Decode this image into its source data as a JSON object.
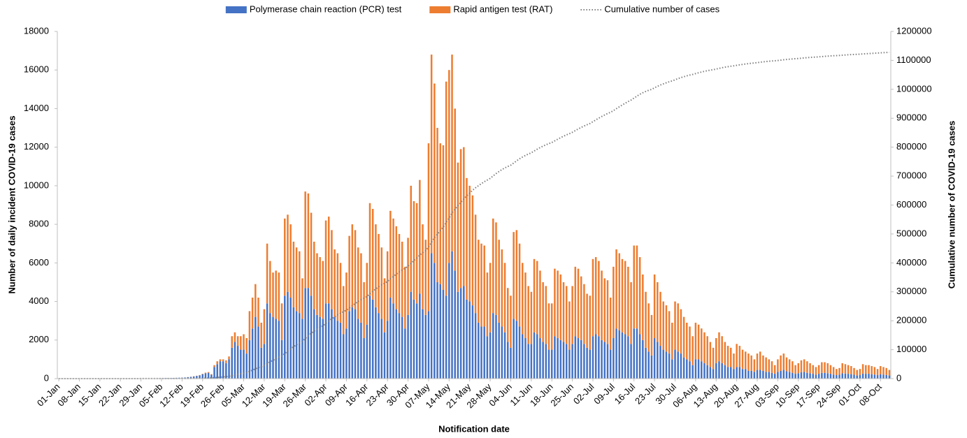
{
  "chart_data": {
    "type": "bar",
    "stacked": true,
    "legend": "top",
    "x_label": "Notification date",
    "y_label": "Number of daily incident COVID-19 cases",
    "y2_label": "Cumulative number of COVID-19 cases",
    "ylim": [
      0,
      18000
    ],
    "yticks": [
      0,
      2000,
      4000,
      6000,
      8000,
      10000,
      12000,
      14000,
      16000,
      18000
    ],
    "y2lim": [
      0,
      1200000
    ],
    "y2ticks": [
      0,
      100000,
      200000,
      300000,
      400000,
      500000,
      600000,
      700000,
      800000,
      900000,
      1000000,
      1100000,
      1200000
    ],
    "categories": [
      "01-Jan",
      null,
      null,
      null,
      null,
      null,
      null,
      "08-Jan",
      null,
      null,
      null,
      null,
      null,
      null,
      "15-Jan",
      null,
      null,
      null,
      null,
      null,
      null,
      "22-Jan",
      null,
      null,
      null,
      null,
      null,
      null,
      "29-Jan",
      null,
      null,
      null,
      null,
      null,
      null,
      "05-Feb",
      null,
      null,
      null,
      null,
      null,
      null,
      "12-Feb",
      null,
      null,
      null,
      null,
      null,
      null,
      "19-Feb",
      null,
      null,
      null,
      null,
      null,
      null,
      "26-Feb",
      null,
      null,
      null,
      null,
      null,
      null,
      "05-Mar",
      null,
      null,
      null,
      null,
      null,
      null,
      "12-Mar",
      null,
      null,
      null,
      null,
      null,
      null,
      "19-Mar",
      null,
      null,
      null,
      null,
      null,
      null,
      "26-Mar",
      null,
      null,
      null,
      null,
      null,
      null,
      "02-Apr",
      null,
      null,
      null,
      null,
      null,
      null,
      "09-Apr",
      null,
      null,
      null,
      null,
      null,
      null,
      "16-Apr",
      null,
      null,
      null,
      null,
      null,
      null,
      "23-Apr",
      null,
      null,
      null,
      null,
      null,
      null,
      "30-Apr",
      null,
      null,
      null,
      null,
      null,
      null,
      "07-May",
      null,
      null,
      null,
      null,
      null,
      null,
      "14-May",
      null,
      null,
      null,
      null,
      null,
      null,
      "21-May",
      null,
      null,
      null,
      null,
      null,
      null,
      "28-May",
      null,
      null,
      null,
      null,
      null,
      null,
      "04-Jun",
      null,
      null,
      null,
      null,
      null,
      null,
      "11-Jun",
      null,
      null,
      null,
      null,
      null,
      null,
      "18-Jun",
      null,
      null,
      null,
      null,
      null,
      null,
      "25-Jun",
      null,
      null,
      null,
      null,
      null,
      null,
      "02-Jul",
      null,
      null,
      null,
      null,
      null,
      null,
      "09-Jul",
      null,
      null,
      null,
      null,
      null,
      null,
      "16-Jul",
      null,
      null,
      null,
      null,
      null,
      null,
      "23-Jul",
      null,
      null,
      null,
      null,
      null,
      null,
      "30-Jul",
      null,
      null,
      null,
      null,
      null,
      null,
      "06-Aug",
      null,
      null,
      null,
      null,
      null,
      null,
      "13-Aug",
      null,
      null,
      null,
      null,
      null,
      null,
      "20-Aug",
      null,
      null,
      null,
      null,
      null,
      null,
      "27-Aug",
      null,
      null,
      null,
      null,
      null,
      null,
      "03-Sep",
      null,
      null,
      null,
      null,
      null,
      null,
      "10-Sep",
      null,
      null,
      null,
      null,
      null,
      null,
      "17-Sep",
      null,
      null,
      null,
      null,
      null,
      null,
      "24-Sep",
      null,
      null,
      null,
      null,
      null,
      null,
      "01-Oct",
      null,
      null,
      null,
      null,
      null,
      null,
      "08-Oct",
      null,
      null,
      null
    ],
    "series": [
      {
        "name": "Polymerase chain reaction (PCR) test",
        "type": "bar",
        "color": "#4472c4",
        "values": [
          3,
          2,
          4,
          5,
          3,
          2,
          4,
          4,
          3,
          5,
          6,
          4,
          3,
          5,
          5,
          4,
          6,
          5,
          4,
          6,
          7,
          8,
          6,
          7,
          9,
          10,
          8,
          9,
          10,
          12,
          14,
          13,
          15,
          18,
          20,
          22,
          25,
          30,
          28,
          35,
          40,
          45,
          50,
          60,
          75,
          90,
          110,
          140,
          170,
          230,
          280,
          300,
          200,
          600,
          750,
          900,
          900,
          800,
          1000,
          1600,
          1900,
          1700,
          1500,
          1500,
          1300,
          2000,
          2600,
          3200,
          2700,
          1600,
          1800,
          3900,
          3400,
          3200,
          3100,
          3000,
          2000,
          4300,
          4500,
          4200,
          3700,
          3500,
          3400,
          3100,
          4700,
          4700,
          4300,
          3600,
          3300,
          3200,
          3100,
          3900,
          3900,
          3600,
          3200,
          3000,
          2900,
          2300,
          2600,
          3500,
          3700,
          3600,
          3100,
          2900,
          2100,
          2800,
          4300,
          4100,
          3700,
          3400,
          3100,
          2400,
          3000,
          4200,
          3900,
          3600,
          3400,
          3200,
          2600,
          3300,
          4500,
          4100,
          3900,
          4400,
          3600,
          3300,
          3500,
          6500,
          6000,
          5000,
          4900,
          4600,
          4300,
          6000,
          6600,
          5600,
          4500,
          4700,
          4800,
          4100,
          4000,
          3800,
          3400,
          2900,
          2700,
          2700,
          2200,
          2400,
          3400,
          3300,
          2900,
          2700,
          2400,
          1900,
          1600,
          3100,
          3000,
          2700,
          2300,
          2100,
          1800,
          1800,
          2400,
          2300,
          2100,
          1900,
          1800,
          1500,
          1500,
          2200,
          2100,
          2000,
          1900,
          1800,
          1500,
          1800,
          2200,
          2100,
          2000,
          1800,
          1600,
          1500,
          2200,
          2300,
          2200,
          2000,
          1900,
          1800,
          1500,
          2100,
          2600,
          2500,
          2400,
          2300,
          2200,
          1800,
          2600,
          2600,
          2300,
          2000,
          1600,
          1400,
          1200,
          2100,
          1900,
          1700,
          1500,
          1400,
          1300,
          1000,
          1500,
          1400,
          1300,
          1100,
          1000,
          900,
          700,
          1000,
          1000,
          900,
          800,
          700,
          600,
          500,
          800,
          900,
          800,
          700,
          600,
          600,
          500,
          600,
          600,
          500,
          500,
          400,
          400,
          350,
          450,
          450,
          400,
          350,
          350,
          300,
          250,
          350,
          400,
          450,
          380,
          350,
          300,
          250,
          280,
          330,
          350,
          300,
          280,
          250,
          200,
          250,
          300,
          300,
          280,
          250,
          210,
          180,
          200,
          280,
          260,
          250,
          230,
          200,
          160,
          180,
          260,
          250,
          250,
          230,
          210,
          180,
          230,
          210,
          190,
          160
        ]
      },
      {
        "name": "Rapid antigen test (RAT)",
        "type": "bar",
        "color": "#ed7d31",
        "values": [
          0,
          0,
          0,
          0,
          0,
          0,
          0,
          0,
          0,
          0,
          0,
          0,
          0,
          0,
          0,
          0,
          0,
          0,
          0,
          0,
          0,
          0,
          0,
          0,
          0,
          0,
          0,
          0,
          0,
          0,
          0,
          0,
          0,
          0,
          0,
          0,
          0,
          0,
          0,
          0,
          0,
          0,
          0,
          0,
          5,
          5,
          10,
          10,
          15,
          20,
          30,
          40,
          30,
          100,
          150,
          100,
          100,
          150,
          150,
          600,
          500,
          500,
          700,
          800,
          800,
          1500,
          1600,
          1700,
          1500,
          1300,
          1800,
          3100,
          2700,
          2300,
          2500,
          2500,
          1900,
          4000,
          4000,
          3800,
          3400,
          3300,
          3200,
          2100,
          5000,
          4900,
          4300,
          3500,
          3200,
          3100,
          3000,
          4300,
          4500,
          4100,
          3500,
          3500,
          3100,
          2500,
          2900,
          3900,
          4300,
          4100,
          3700,
          3600,
          2900,
          3200,
          4800,
          4700,
          4300,
          4100,
          3700,
          2800,
          3600,
          4500,
          4400,
          4300,
          4100,
          3900,
          3200,
          4000,
          5500,
          5100,
          5200,
          5900,
          4400,
          3900,
          8700,
          10300,
          9300,
          8000,
          7300,
          7500,
          11100,
          10000,
          10200,
          8400,
          6700,
          7200,
          7200,
          6300,
          6000,
          5700,
          5100,
          4300,
          4300,
          4200,
          3300,
          3600,
          4900,
          4800,
          4300,
          4000,
          3600,
          2800,
          2700,
          4500,
          4700,
          4300,
          3700,
          3400,
          3000,
          2700,
          3800,
          3800,
          3500,
          3100,
          3000,
          2400,
          2400,
          3500,
          3500,
          3400,
          3100,
          3000,
          2500,
          3000,
          3600,
          3600,
          3300,
          3100,
          2800,
          2800,
          4000,
          4000,
          3900,
          3600,
          3300,
          3300,
          2700,
          3700,
          4100,
          4000,
          3800,
          3800,
          3600,
          3200,
          4300,
          4300,
          4000,
          3400,
          2900,
          2500,
          2100,
          3300,
          3100,
          2800,
          2500,
          2400,
          2200,
          1900,
          2500,
          2500,
          2300,
          2100,
          1900,
          1800,
          1500,
          1900,
          1800,
          1700,
          1600,
          1500,
          1300,
          1100,
          1300,
          1500,
          1400,
          1200,
          1100,
          1000,
          800,
          1200,
          1100,
          1000,
          900,
          900,
          800,
          650,
          850,
          950,
          800,
          750,
          650,
          600,
          450,
          650,
          800,
          850,
          720,
          650,
          600,
          450,
          520,
          620,
          650,
          600,
          520,
          450,
          400,
          450,
          550,
          550,
          520,
          450,
          390,
          320,
          350,
          520,
          490,
          450,
          420,
          350,
          290,
          320,
          490,
          450,
          450,
          420,
          390,
          320,
          420,
          390,
          360,
          290
        ]
      },
      {
        "name": "Cumulative number of cases",
        "type": "line",
        "axis": "y2",
        "color": "#7f7f7f",
        "values": [
          3,
          5,
          9,
          14,
          17,
          19,
          23,
          27,
          30,
          35,
          41,
          45,
          48,
          53,
          58,
          62,
          68,
          73,
          77,
          83,
          90,
          98,
          104,
          111,
          120,
          130,
          138,
          147,
          157,
          169,
          183,
          196,
          211,
          229,
          249,
          271,
          296,
          326,
          354,
          389,
          429,
          474,
          524,
          584,
          664,
          759,
          879,
          1029,
          1214,
          1464,
          1774,
          2114,
          2344,
          3044,
          3944,
          4944,
          5944,
          6894,
          8044,
          10244,
          12644,
          14844,
          17044,
          19344,
          21444,
          24944,
          29144,
          34044,
          38244,
          41144,
          44744,
          51744,
          57844,
          63344,
          68944,
          74444,
          78344,
          86644,
          95144,
          103144,
          110244,
          117044,
          123644,
          128844,
          138544,
          148144,
          156744,
          163844,
          170344,
          176644,
          182744,
          190944,
          199344,
          207044,
          213744,
          220244,
          226244,
          231044,
          236544,
          243944,
          251944,
          259644,
          266444,
          272944,
          277944,
          283944,
          293044,
          301844,
          309844,
          317344,
          324144,
          329344,
          335944,
          344644,
          352944,
          360844,
          368344,
          375444,
          381244,
          388544,
          398544,
          407744,
          416844,
          427144,
          435144,
          442344,
          454544,
          471344,
          486644,
          499644,
          511844,
          523944,
          539344,
          555344,
          572144,
          586144,
          597344,
          609244,
          621244,
          631644,
          641644,
          651144,
          659644,
          666844,
          673844,
          680744,
          686244,
          692244,
          700544,
          708644,
          715844,
          722544,
          728544,
          733244,
          737544,
          745144,
          752844,
          759844,
          765844,
          771344,
          776144,
          780644,
          786844,
          792944,
          798544,
          803544,
          808344,
          812244,
          816144,
          821844,
          827444,
          832844,
          837844,
          842644,
          846644,
          851444,
          857244,
          862944,
          868244,
          873144,
          877544,
          881844,
          888044,
          894344,
          900444,
          906044,
          911244,
          916344,
          920544,
          926344,
          933044,
          939544,
          945744,
          951844,
          957644,
          962644,
          969544,
          976444,
          982744,
          988144,
          992644,
          996544,
          999844,
          1005244,
          1010244,
          1014744,
          1018744,
          1022544,
          1026044,
          1028944,
          1032944,
          1036844,
          1040444,
          1043644,
          1046544,
          1049244,
          1051444,
          1054344,
          1057144,
          1059744,
          1062144,
          1064344,
          1066244,
          1067844,
          1069944,
          1072344,
          1074544,
          1076444,
          1078144,
          1079744,
          1081044,
          1082844,
          1084544,
          1086044,
          1087444,
          1088744,
          1089944,
          1090944,
          1092244,
          1093644,
          1094844,
          1095944,
          1096944,
          1097844,
          1098544,
          1099544,
          1100744,
          1102044,
          1103144,
          1104144,
          1105044,
          1105744,
          1106544,
          1107494,
          1108494,
          1109394,
          1110194,
          1110894,
          1111494,
          1112194,
          1113044,
          1113894,
          1114694,
          1115394,
          1115994,
          1116494,
          1117044,
          1117844,
          1118594,
          1119294,
          1119944,
          1120494,
          1120944,
          1121444,
          1122194,
          1122894,
          1123594,
          1124244,
          1124844,
          1125344,
          1125994,
          1126594,
          1127144,
          1127594
        ]
      }
    ]
  }
}
